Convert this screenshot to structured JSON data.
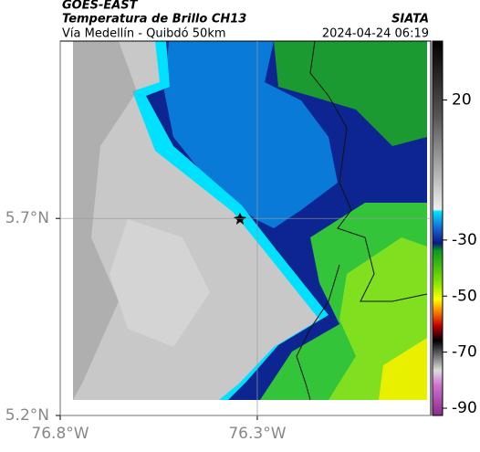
{
  "header": {
    "title": "GOES-EAST",
    "subtitle": "Temperatura de Brillo CH13",
    "source": "SIATA",
    "route": "Vía Medellín - Quibdó 50km",
    "timestamp": "2024-04-24 06:19"
  },
  "map": {
    "xlim": [
      -76.8,
      -75.86
    ],
    "ylim": [
      5.2,
      6.15
    ],
    "xticks": [
      {
        "value": -76.8,
        "label": "76.8°W"
      },
      {
        "value": -76.3,
        "label": "76.3°W"
      }
    ],
    "yticks": [
      {
        "value": 5.2,
        "label": "5.2°N"
      },
      {
        "value": 5.7,
        "label": "5.7°N"
      }
    ],
    "grid": true
  },
  "colorbar": {
    "lim": [
      -92.6,
      41
    ],
    "ticks": [
      20,
      -30,
      -50,
      -70,
      -90
    ]
  }
}
